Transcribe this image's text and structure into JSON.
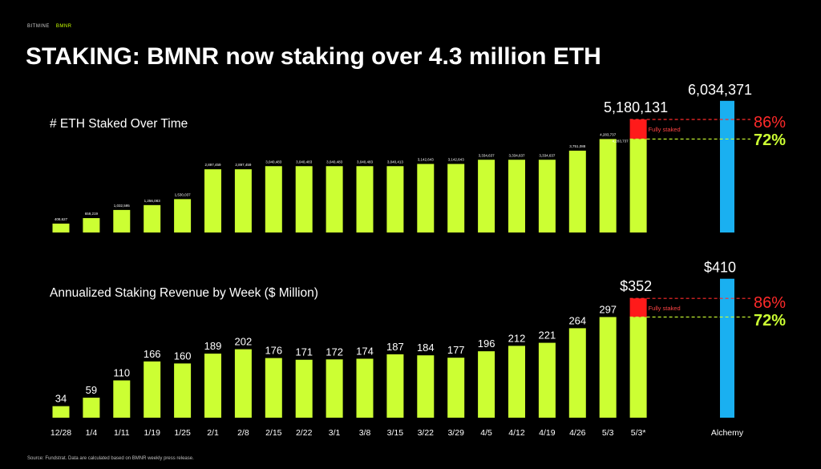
{
  "brand": {
    "name": "BITMINE",
    "tag": "BMNR"
  },
  "title": "STAKING: BMNR now staking over 4.3 million ETH",
  "source": "Source: Fundstrat. Data are calculated based on BMNR weekly press release.",
  "colors": {
    "bar": "#ccff33",
    "alchemy": "#1ab0f0",
    "fully_staked": "#ff1a1a",
    "pct86": "#ff2a2a",
    "pct72": "#ccff33"
  },
  "chart_data": [
    {
      "type": "bar",
      "title": "# ETH Staked Over Time",
      "categories": [
        "12/28",
        "1/4",
        "1/11",
        "1/19",
        "1/25",
        "2/1",
        "2/8",
        "2/15",
        "2/22",
        "3/1",
        "3/8",
        "3/15",
        "3/22",
        "3/29",
        "4/5",
        "4/12",
        "4/19",
        "4/26",
        "5/3",
        "5/3*"
      ],
      "values": [
        408627,
        659219,
        1032595,
        1256083,
        1530037,
        2897459,
        2897459,
        3040483,
        3040483,
        3040483,
        3040483,
        3040413,
        3142643,
        3142643,
        3334637,
        3334637,
        3334637,
        3751088,
        4283737,
        4283737
      ],
      "value_labels": [
        "408,627",
        "659,219",
        "1,032,595",
        "1,256,083",
        "1,530,037",
        "2,897,459",
        "2,897,459",
        "3,040,483",
        "3,040,483",
        "3,040,483",
        "3,040,483",
        "3,040,413",
        "3,142,643",
        "3,142,643",
        "3,334,637",
        "3,334,637",
        "3,334,637",
        "3,751,088",
        "4,283,737",
        ""
      ],
      "last_label": "5,180,131",
      "last_value_label": "4,283,737",
      "fully_staked_value": 5180131,
      "fully_staked_label": "Fully staked",
      "alchemy": {
        "label": "Alchemy",
        "value": 6034371,
        "value_label": "6,034,371"
      },
      "pct_86": "86%",
      "pct_72": "72%",
      "ylim": [
        0,
        6100000
      ]
    },
    {
      "type": "bar",
      "title": "Annualized Staking Revenue by Week ($ Million)",
      "categories": [
        "12/28",
        "1/4",
        "1/11",
        "1/19",
        "1/25",
        "2/1",
        "2/8",
        "2/15",
        "2/22",
        "3/1",
        "3/8",
        "3/15",
        "3/22",
        "3/29",
        "4/5",
        "4/12",
        "4/19",
        "4/26",
        "5/3",
        "5/3*"
      ],
      "values": [
        34,
        59,
        110,
        166,
        160,
        189,
        202,
        176,
        171,
        172,
        174,
        187,
        184,
        177,
        196,
        212,
        221,
        264,
        297,
        297
      ],
      "value_labels": [
        "34",
        "59",
        "110",
        "166",
        "160",
        "189",
        "202",
        "176",
        "171",
        "172",
        "174",
        "187",
        "184",
        "177",
        "196",
        "212",
        "221",
        "264",
        "297",
        ""
      ],
      "last_label": "$352",
      "fully_staked_value": 352,
      "fully_staked_label": "Fully staked",
      "alchemy": {
        "label": "Alchemy",
        "value": 410,
        "value_label": "$410"
      },
      "pct_86": "86%",
      "pct_72": "72%",
      "ylim": [
        0,
        414
      ]
    }
  ]
}
